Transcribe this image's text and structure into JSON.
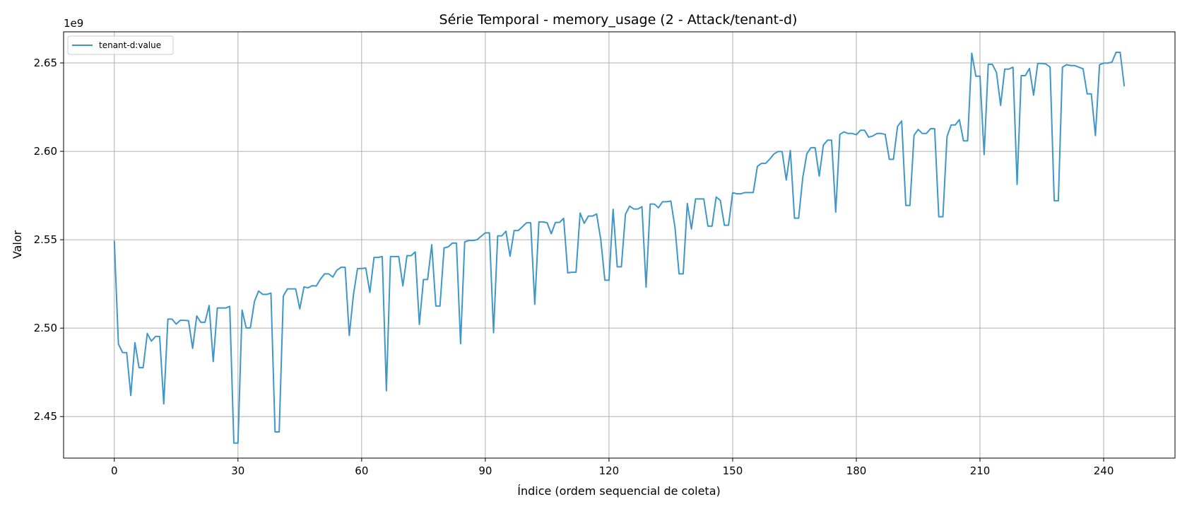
{
  "chart_data": {
    "type": "line",
    "title": "Série Temporal - memory_usage (2 - Attack/tenant-d)",
    "xlabel": "Índice (ordem sequencial de coleta)",
    "ylabel": "Valor",
    "y_offset_label": "1e9",
    "y_scale": 1000000000,
    "xlim": [
      -12.3,
      257.3
    ],
    "ylim": [
      2.4265,
      2.6676
    ],
    "x_ticks": [
      0,
      30,
      60,
      90,
      120,
      150,
      180,
      210,
      240
    ],
    "x_tick_labels": [
      "0",
      "30",
      "60",
      "90",
      "120",
      "150",
      "180",
      "210",
      "240"
    ],
    "y_ticks": [
      2.45,
      2.5,
      2.55,
      2.6,
      2.65
    ],
    "y_tick_labels": [
      "2.45",
      "2.50",
      "2.55",
      "2.60",
      "2.65"
    ],
    "grid": true,
    "legend_position": "top-left",
    "series": [
      {
        "name": "tenant-d:value",
        "color": "#3f97c9",
        "y": [
          2.5495,
          2.491,
          2.4862,
          2.4862,
          2.4619,
          2.4918,
          2.4777,
          2.4777,
          2.497,
          2.4927,
          2.4953,
          2.4953,
          2.4572,
          2.5051,
          2.5051,
          2.5023,
          2.5044,
          2.5044,
          2.5042,
          2.4886,
          2.5069,
          2.5033,
          2.5033,
          2.5128,
          2.4811,
          2.5114,
          2.5114,
          2.5114,
          2.5123,
          2.435,
          2.435,
          2.5102,
          2.5001,
          2.5001,
          2.5151,
          2.521,
          2.5191,
          2.5191,
          2.5198,
          2.4413,
          2.4413,
          2.5181,
          2.5222,
          2.5222,
          2.5222,
          2.5109,
          2.5233,
          2.5228,
          2.524,
          2.5238,
          2.5277,
          2.5307,
          2.5307,
          2.5289,
          2.5328,
          2.5344,
          2.5344,
          2.4958,
          2.5187,
          2.5337,
          2.5337,
          2.534,
          2.5202,
          2.54,
          2.54,
          2.5405,
          2.4646,
          2.5405,
          2.5405,
          2.5405,
          2.5239,
          2.541,
          2.541,
          2.5431,
          2.5021,
          2.5275,
          2.5275,
          2.5472,
          2.5125,
          2.5125,
          2.5454,
          2.546,
          2.5481,
          2.5481,
          2.4912,
          2.5488,
          2.5496,
          2.5496,
          2.55,
          2.552,
          2.5539,
          2.5539,
          2.4974,
          2.5522,
          2.5522,
          2.5548,
          2.5407,
          2.5552,
          2.5552,
          2.5574,
          2.5596,
          2.5596,
          2.5135,
          2.5601,
          2.5601,
          2.5596,
          2.5534,
          2.5598,
          2.5598,
          2.5621,
          2.5313,
          2.5316,
          2.5316,
          2.5651,
          2.5593,
          2.5634,
          2.5634,
          2.5646,
          2.5502,
          2.5271,
          2.5271,
          2.5672,
          2.5347,
          2.5347,
          2.5644,
          2.569,
          2.5674,
          2.5674,
          2.5687,
          2.5232,
          2.5702,
          2.5702,
          2.5681,
          2.5715,
          2.5715,
          2.5719,
          2.5572,
          2.5307,
          2.5307,
          2.5705,
          2.5561,
          2.5731,
          2.5731,
          2.5731,
          2.5577,
          2.5577,
          2.5742,
          2.5723,
          2.5582,
          2.5582,
          2.5766,
          2.576,
          2.576,
          2.5767,
          2.5767,
          2.5767,
          2.5915,
          2.5932,
          2.5932,
          2.5956,
          2.5985,
          2.5999,
          2.5999,
          2.5838,
          2.6005,
          2.5622,
          2.5622,
          2.585,
          2.5987,
          2.6021,
          2.6021,
          2.586,
          2.6035,
          2.6063,
          2.6063,
          2.5656,
          2.6096,
          2.611,
          2.6101,
          2.6101,
          2.6094,
          2.6119,
          2.6119,
          2.608,
          2.6087,
          2.6101,
          2.6101,
          2.6096,
          2.5955,
          2.5955,
          2.6141,
          2.6172,
          2.5694,
          2.5694,
          2.6091,
          2.6124,
          2.6101,
          2.6101,
          2.6128,
          2.6128,
          2.563,
          2.563,
          2.6084,
          2.6149,
          2.6149,
          2.6179,
          2.6059,
          2.6059,
          2.6555,
          2.6425,
          2.6425,
          2.5982,
          2.6492,
          2.6492,
          2.6446,
          2.626,
          2.6465,
          2.6465,
          2.6476,
          2.5813,
          2.6428,
          2.6428,
          2.6469,
          2.6318,
          2.6497,
          2.6497,
          2.6494,
          2.6476,
          2.5721,
          2.5721,
          2.6476,
          2.649,
          2.6485,
          2.6485,
          2.6476,
          2.6467,
          2.6325,
          2.6325,
          2.6089,
          2.649,
          2.6499,
          2.6499,
          2.6504,
          2.656,
          2.656,
          2.6367
        ]
      }
    ]
  }
}
